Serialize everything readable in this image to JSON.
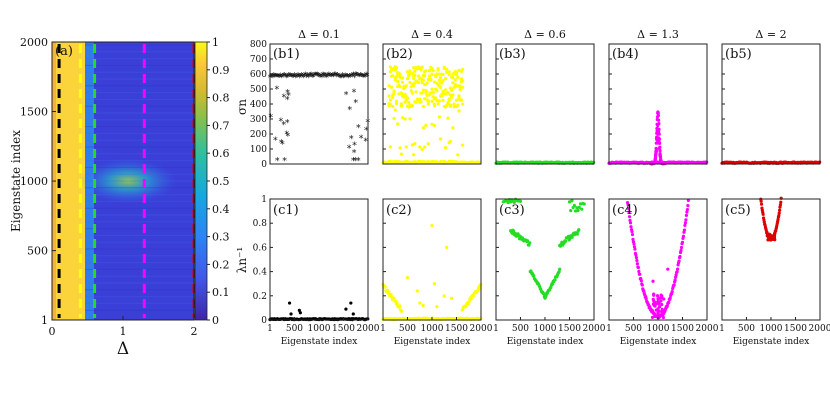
{
  "chart_data": [
    {
      "id": "a",
      "type": "heatmap",
      "tag": "(a)",
      "xlabel": "Δ",
      "ylabel": "Eigenstate index",
      "xlim": [
        0,
        2
      ],
      "ylim": [
        1,
        2000
      ],
      "xticks": [
        "0",
        "1",
        "2"
      ],
      "yticks": [
        "1",
        "500",
        "1000",
        "1500",
        "2000"
      ],
      "colorbar": {
        "ticks": [
          "0",
          "0.1",
          "0.2",
          "0.3",
          "0.4",
          "0.5",
          "0.6",
          "0.7",
          "0.8",
          "0.9",
          "1"
        ],
        "range": [
          0,
          1
        ]
      },
      "marked_deltas": [
        {
          "delta": 0.1,
          "color": "#000000"
        },
        {
          "delta": 0.4,
          "color": "#ffff00"
        },
        {
          "delta": 0.6,
          "color": "#22dd22"
        },
        {
          "delta": 1.3,
          "color": "#ff00ff"
        },
        {
          "delta": 2.0,
          "color": "#dd0000"
        }
      ]
    },
    {
      "id": "b",
      "type": "scatter",
      "ylabel": "σn",
      "ylim": [
        0,
        800
      ],
      "yticks": [
        "0",
        "100",
        "200",
        "300",
        "400",
        "500",
        "600",
        "700",
        "800"
      ],
      "xlim": [
        1,
        2000
      ],
      "panels": [
        {
          "tag": "(b1)",
          "title": "Δ = 0.1",
          "color": "#000000",
          "pattern": "flat580"
        },
        {
          "tag": "(b2)",
          "title": "Δ = 0.4",
          "color": "#ffff00",
          "pattern": "yellow"
        },
        {
          "tag": "(b3)",
          "title": "Δ = 0.6",
          "color": "#22dd22",
          "pattern": "zero"
        },
        {
          "tag": "(b4)",
          "title": "Δ = 1.3",
          "color": "#ff00ff",
          "pattern": "spike"
        },
        {
          "tag": "(b5)",
          "title": "Δ = 2",
          "color": "#dd0000",
          "pattern": "zero"
        }
      ]
    },
    {
      "id": "c",
      "type": "scatter",
      "ylabel": "λn⁻¹",
      "ylim": [
        0,
        1
      ],
      "yticks": [
        "0",
        "0.2",
        "0.4",
        "0.6",
        "0.8",
        "1"
      ],
      "xlabel": "Eigenstate index",
      "xlim": [
        1,
        2000
      ],
      "xticks": [
        "1",
        "500",
        "1000",
        "1500",
        "2000"
      ],
      "panels": [
        {
          "tag": "(c1)",
          "color": "#000000",
          "pattern": "low"
        },
        {
          "tag": "(c2)",
          "color": "#ffff00",
          "pattern": "lowedges"
        },
        {
          "tag": "(c3)",
          "color": "#22dd22",
          "pattern": "vshape"
        },
        {
          "tag": "(c4)",
          "color": "#ff00ff",
          "pattern": "bowl"
        },
        {
          "tag": "(c5)",
          "color": "#dd0000",
          "pattern": "narrow"
        }
      ]
    }
  ]
}
